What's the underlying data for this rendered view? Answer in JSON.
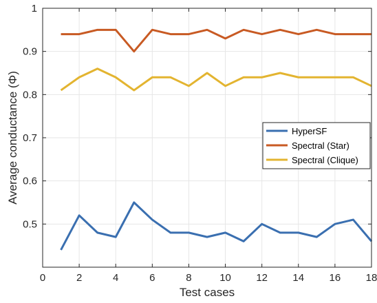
{
  "chart_data": {
    "type": "line",
    "xlabel": "Test cases",
    "ylabel": "Average conductance (Φ)",
    "xlim": [
      0,
      18
    ],
    "ylim": [
      0.4,
      1.0
    ],
    "xticks": [
      0,
      2,
      4,
      6,
      8,
      10,
      12,
      14,
      16,
      18
    ],
    "yticks": [
      0.5,
      0.6,
      0.7,
      0.8,
      0.9,
      1.0
    ],
    "xtick_labels": [
      "0",
      "2",
      "4",
      "6",
      "8",
      "10",
      "12",
      "14",
      "16",
      "18"
    ],
    "ytick_labels": [
      "0.5",
      "0.6",
      "0.7",
      "0.8",
      "0.9",
      "1"
    ],
    "grid": true,
    "legend_position": "center-right",
    "x": [
      1,
      2,
      3,
      4,
      5,
      6,
      7,
      8,
      9,
      10,
      11,
      12,
      13,
      14,
      15,
      16,
      17,
      18
    ],
    "series": [
      {
        "name": "HyperSF",
        "color": "#3a6fb0",
        "values": [
          0.44,
          0.52,
          0.48,
          0.47,
          0.55,
          0.51,
          0.48,
          0.48,
          0.47,
          0.48,
          0.46,
          0.5,
          0.48,
          0.48,
          0.47,
          0.5,
          0.51,
          0.46
        ]
      },
      {
        "name": "Spectral (Star)",
        "color": "#c85a23",
        "values": [
          0.94,
          0.94,
          0.95,
          0.95,
          0.9,
          0.95,
          0.94,
          0.94,
          0.95,
          0.93,
          0.95,
          0.94,
          0.95,
          0.94,
          0.95,
          0.94,
          0.94,
          0.94
        ]
      },
      {
        "name": "Spectral (Clique)",
        "color": "#e3b430",
        "values": [
          0.81,
          0.84,
          0.86,
          0.84,
          0.81,
          0.84,
          0.84,
          0.82,
          0.85,
          0.82,
          0.84,
          0.84,
          0.85,
          0.84,
          0.84,
          0.84,
          0.84,
          0.82
        ]
      }
    ]
  }
}
